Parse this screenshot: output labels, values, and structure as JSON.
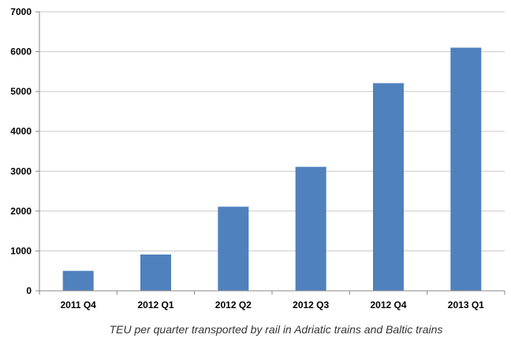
{
  "chart_data": {
    "type": "bar",
    "categories": [
      "2011 Q4",
      "2012 Q1",
      "2012 Q2",
      "2012 Q3",
      "2012 Q4",
      "2013 Q1"
    ],
    "values": [
      500,
      910,
      2110,
      3110,
      5210,
      6100
    ],
    "ylim": [
      0,
      7000
    ],
    "yticks": [
      0,
      1000,
      2000,
      3000,
      4000,
      5000,
      6000,
      7000
    ],
    "grid": true,
    "bar_color": "#4f81bd",
    "caption": "TEU per quarter transported by rail in Adriatic trains and Baltic trains"
  }
}
